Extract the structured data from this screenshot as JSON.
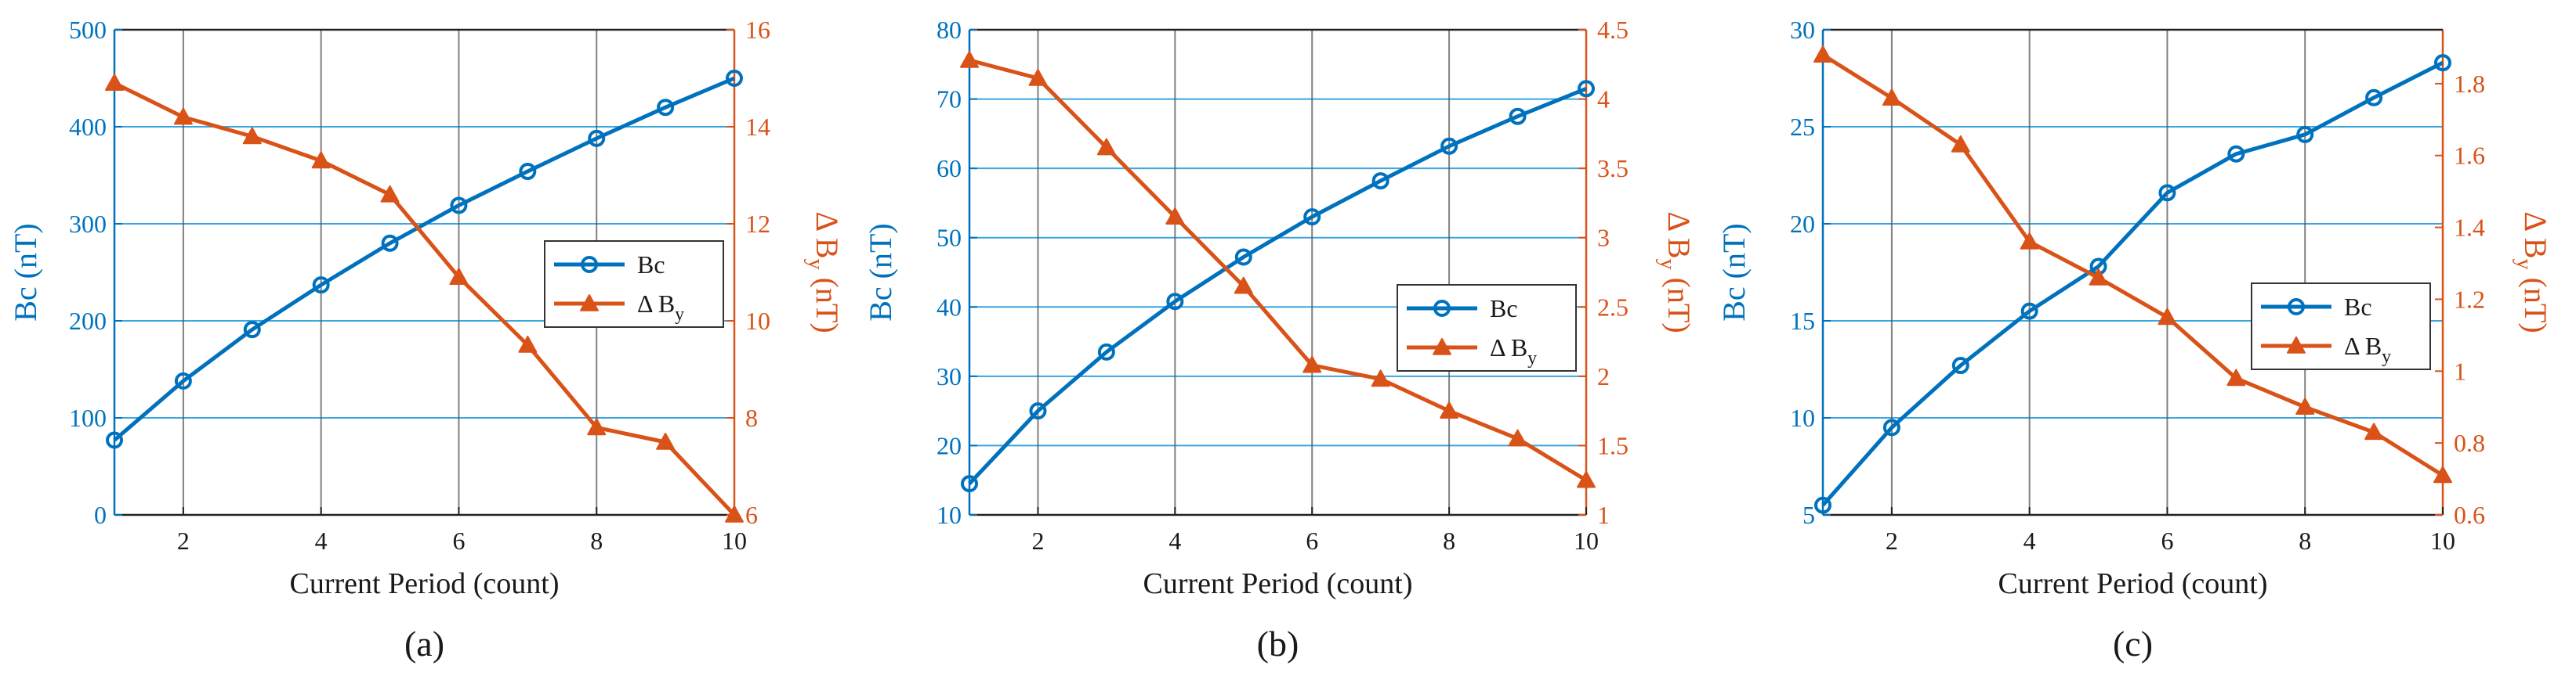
{
  "colors": {
    "bc": "#0072BD",
    "dby": "#D95319",
    "grid_h": "#3AA6E0",
    "grid_v": "#555555",
    "legend_border": "#333333"
  },
  "chart_data": [
    {
      "type": "line",
      "caption": "(a)",
      "xlabel": "Current Period (count)",
      "ylabel_left": "Bc (nT)",
      "ylabel_right_main": "Δ B",
      "ylabel_right_sub": "y",
      "ylabel_right_unit": " (nT)",
      "xlim": [
        1,
        10
      ],
      "xticks": [
        2,
        4,
        6,
        8,
        10
      ],
      "ylim_left": [
        0,
        500
      ],
      "yticks_left": [
        0,
        100,
        200,
        300,
        400,
        500
      ],
      "ylim_right": [
        6,
        16
      ],
      "yticks_right": [
        6,
        8,
        10,
        12,
        14,
        16
      ],
      "grid": true,
      "legend_position": "middle-right",
      "series": [
        {
          "name": "Bc",
          "axis": "left",
          "marker": "circle",
          "x": [
            1,
            2,
            3,
            4,
            5,
            6,
            7,
            8,
            9,
            10
          ],
          "y": [
            77,
            138,
            191,
            237,
            280,
            319,
            354,
            388,
            420,
            450
          ]
        },
        {
          "name": "Δ B",
          "name_sub": "y",
          "axis": "right",
          "marker": "triangle",
          "x": [
            1,
            2,
            3,
            4,
            5,
            6,
            7,
            8,
            9,
            10
          ],
          "y": [
            14.9,
            14.2,
            13.8,
            13.3,
            12.6,
            10.9,
            9.5,
            7.8,
            7.5,
            6.0
          ]
        }
      ]
    },
    {
      "type": "line",
      "caption": "(b)",
      "xlabel": "Current Period (count)",
      "ylabel_left": "Bc (nT)",
      "ylabel_right_main": "Δ B",
      "ylabel_right_sub": "y",
      "ylabel_right_unit": " (nT)",
      "xlim": [
        1,
        10
      ],
      "xticks": [
        2,
        4,
        6,
        8,
        10
      ],
      "ylim_left": [
        10,
        80
      ],
      "yticks_left": [
        10,
        20,
        30,
        40,
        50,
        60,
        70,
        80
      ],
      "ylim_right": [
        1,
        4.5
      ],
      "yticks_right": [
        1,
        1.5,
        2,
        2.5,
        3,
        3.5,
        4,
        4.5
      ],
      "grid": true,
      "legend_position": "lower-right",
      "series": [
        {
          "name": "Bc",
          "axis": "left",
          "marker": "circle",
          "x": [
            1,
            2,
            3,
            4,
            5,
            6,
            7,
            8,
            9,
            10
          ],
          "y": [
            14.5,
            25,
            33.5,
            40.8,
            47.2,
            53,
            58.2,
            63.2,
            67.5,
            71.5
          ]
        },
        {
          "name": "Δ B",
          "name_sub": "y",
          "axis": "right",
          "marker": "triangle",
          "x": [
            1,
            2,
            3,
            4,
            5,
            6,
            7,
            8,
            9,
            10
          ],
          "y": [
            4.28,
            4.15,
            3.65,
            3.15,
            2.65,
            2.08,
            1.98,
            1.75,
            1.55,
            1.25
          ]
        }
      ]
    },
    {
      "type": "line",
      "caption": "(c)",
      "xlabel": "Current Period (count)",
      "ylabel_left": "Bc (nT)",
      "ylabel_right_main": "Δ B",
      "ylabel_right_sub": "y",
      "ylabel_right_unit": " (nT)",
      "xlim": [
        1,
        10
      ],
      "xticks": [
        2,
        4,
        6,
        8,
        10
      ],
      "ylim_left": [
        5,
        30
      ],
      "yticks_left": [
        5,
        10,
        15,
        20,
        25,
        30
      ],
      "ylim_right": [
        0.6,
        1.95
      ],
      "yticks_right": [
        0.6,
        0.8,
        1,
        1.2,
        1.4,
        1.6,
        1.8
      ],
      "grid": true,
      "legend_position": "middle-right",
      "series": [
        {
          "name": "Bc",
          "axis": "left",
          "marker": "circle",
          "x": [
            1,
            2,
            3,
            4,
            5,
            6,
            7,
            8,
            9,
            10
          ],
          "y": [
            5.5,
            9.5,
            12.7,
            15.5,
            17.8,
            21.6,
            23.6,
            24.6,
            26.5,
            28.3
          ]
        },
        {
          "name": "Δ B",
          "name_sub": "y",
          "axis": "right",
          "marker": "triangle",
          "x": [
            1,
            2,
            3,
            4,
            5,
            6,
            7,
            8,
            9,
            10
          ],
          "y": [
            1.88,
            1.76,
            1.63,
            1.36,
            1.26,
            1.15,
            0.98,
            0.9,
            0.83,
            0.71
          ]
        }
      ]
    }
  ]
}
